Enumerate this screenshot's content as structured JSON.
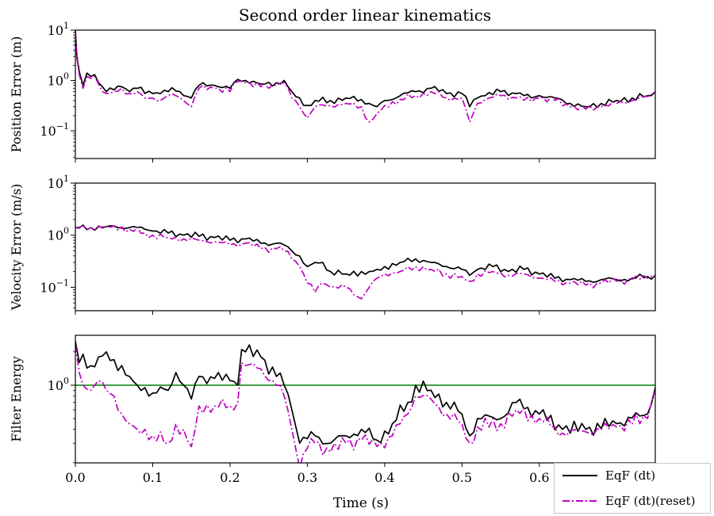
{
  "chart_data": {
    "title": "Second order linear kinematics",
    "xlabel": "Time (s)",
    "xlim": [
      0,
      0.75
    ],
    "x_ticks": [
      "0.0",
      "0.1",
      "0.2",
      "0.3",
      "0.4",
      "0.5",
      "0.6"
    ],
    "x_tick_values": [
      0,
      0.1,
      0.2,
      0.3,
      0.4,
      0.5,
      0.6
    ],
    "legend": {
      "placement": "bottom-right",
      "entries": [
        {
          "label": "EqF (dt)",
          "color": "#000000",
          "style": "solid"
        },
        {
          "label": "EqF (dt)(reset)",
          "color": "#c000c0",
          "style": "dashdot"
        }
      ]
    },
    "subplots": [
      {
        "type": "line",
        "ylabel": "Position Error (m)",
        "yscale": "log",
        "ylim_log10": [
          -1.55,
          1.0
        ],
        "y_ticks": [
          {
            "base": "10",
            "exp": "1",
            "value": 10
          },
          {
            "base": "10",
            "exp": "0",
            "value": 1
          },
          {
            "base": "10",
            "exp": "−1",
            "value": 0.1
          }
        ],
        "series": [
          {
            "name": "EqF (dt)",
            "color": "#000000",
            "dash": "",
            "x": [
              0,
              0.002,
              0.005,
              0.01,
              0.015,
              0.02,
              0.025,
              0.03,
              0.04,
              0.05,
              0.06,
              0.07,
              0.08,
              0.09,
              0.1,
              0.11,
              0.12,
              0.13,
              0.14,
              0.15,
              0.16,
              0.18,
              0.2,
              0.21,
              0.22,
              0.24,
              0.26,
              0.27,
              0.28,
              0.29,
              0.3,
              0.31,
              0.33,
              0.35,
              0.37,
              0.38,
              0.39,
              0.4,
              0.42,
              0.44,
              0.46,
              0.48,
              0.5,
              0.51,
              0.52,
              0.53,
              0.55,
              0.57,
              0.59,
              0.6,
              0.62,
              0.64,
              0.66,
              0.68,
              0.7,
              0.72,
              0.74,
              0.75
            ],
            "y": [
              10,
              3,
              1.5,
              0.8,
              1.4,
              1.2,
              1.3,
              0.9,
              0.6,
              0.65,
              0.75,
              0.6,
              0.7,
              0.55,
              0.55,
              0.55,
              0.6,
              0.62,
              0.5,
              0.45,
              0.8,
              0.8,
              0.7,
              1.05,
              1.0,
              0.85,
              0.9,
              1.0,
              0.6,
              0.45,
              0.32,
              0.4,
              0.4,
              0.45,
              0.42,
              0.35,
              0.3,
              0.4,
              0.5,
              0.6,
              0.7,
              0.55,
              0.55,
              0.3,
              0.45,
              0.5,
              0.6,
              0.55,
              0.45,
              0.5,
              0.45,
              0.35,
              0.3,
              0.35,
              0.4,
              0.45,
              0.5,
              0.6
            ]
          },
          {
            "name": "EqF (dt)(reset)",
            "color": "#c000c0",
            "dash": "9,3,2,3",
            "x": [
              0,
              0.002,
              0.005,
              0.01,
              0.015,
              0.02,
              0.025,
              0.03,
              0.04,
              0.05,
              0.06,
              0.07,
              0.08,
              0.09,
              0.1,
              0.11,
              0.12,
              0.13,
              0.14,
              0.15,
              0.16,
              0.18,
              0.2,
              0.21,
              0.22,
              0.24,
              0.26,
              0.27,
              0.28,
              0.29,
              0.3,
              0.31,
              0.33,
              0.35,
              0.37,
              0.38,
              0.39,
              0.4,
              0.42,
              0.44,
              0.46,
              0.48,
              0.5,
              0.51,
              0.52,
              0.53,
              0.55,
              0.57,
              0.59,
              0.6,
              0.62,
              0.64,
              0.66,
              0.68,
              0.7,
              0.72,
              0.74,
              0.75
            ],
            "y": [
              9,
              2.8,
              1.3,
              0.7,
              1.2,
              1.1,
              1.2,
              0.85,
              0.55,
              0.6,
              0.7,
              0.55,
              0.6,
              0.45,
              0.45,
              0.4,
              0.5,
              0.5,
              0.4,
              0.3,
              0.7,
              0.7,
              0.6,
              0.95,
              0.9,
              0.75,
              0.8,
              0.9,
              0.45,
              0.3,
              0.18,
              0.3,
              0.32,
              0.35,
              0.3,
              0.15,
              0.22,
              0.32,
              0.42,
              0.5,
              0.6,
              0.45,
              0.45,
              0.15,
              0.35,
              0.42,
              0.5,
              0.45,
              0.38,
              0.45,
              0.4,
              0.3,
              0.27,
              0.3,
              0.35,
              0.4,
              0.48,
              0.6
            ]
          }
        ]
      },
      {
        "type": "line",
        "ylabel": "Velocity Error (m/s)",
        "yscale": "log",
        "ylim_log10": [
          -1.45,
          1.0
        ],
        "y_ticks": [
          {
            "base": "10",
            "exp": "1",
            "value": 10
          },
          {
            "base": "10",
            "exp": "0",
            "value": 1
          },
          {
            "base": "10",
            "exp": "−1",
            "value": 0.1
          }
        ],
        "series": [
          {
            "name": "EqF (dt)",
            "color": "#000000",
            "dash": "",
            "x": [
              0,
              0.02,
              0.04,
              0.05,
              0.07,
              0.09,
              0.1,
              0.12,
              0.14,
              0.16,
              0.18,
              0.2,
              0.22,
              0.24,
              0.26,
              0.27,
              0.28,
              0.29,
              0.3,
              0.31,
              0.32,
              0.33,
              0.35,
              0.37,
              0.38,
              0.39,
              0.4,
              0.42,
              0.44,
              0.46,
              0.48,
              0.5,
              0.51,
              0.52,
              0.54,
              0.56,
              0.58,
              0.6,
              0.62,
              0.64,
              0.66,
              0.68,
              0.7,
              0.72,
              0.74,
              0.75
            ],
            "y": [
              1.4,
              1.4,
              1.45,
              1.5,
              1.4,
              1.3,
              1.2,
              1.1,
              1.0,
              0.95,
              0.9,
              0.8,
              0.85,
              0.7,
              0.7,
              0.65,
              0.5,
              0.4,
              0.25,
              0.3,
              0.3,
              0.2,
              0.18,
              0.2,
              0.2,
              0.22,
              0.25,
              0.3,
              0.35,
              0.3,
              0.25,
              0.22,
              0.17,
              0.22,
              0.25,
              0.2,
              0.22,
              0.18,
              0.15,
              0.14,
              0.13,
              0.14,
              0.14,
              0.15,
              0.16,
              0.17
            ]
          },
          {
            "name": "EqF (dt)(reset)",
            "color": "#c000c0",
            "dash": "9,3,2,3",
            "x": [
              0,
              0.02,
              0.04,
              0.05,
              0.07,
              0.09,
              0.1,
              0.12,
              0.14,
              0.16,
              0.18,
              0.2,
              0.22,
              0.24,
              0.26,
              0.27,
              0.28,
              0.29,
              0.3,
              0.31,
              0.32,
              0.33,
              0.35,
              0.37,
              0.38,
              0.39,
              0.4,
              0.42,
              0.44,
              0.46,
              0.48,
              0.5,
              0.51,
              0.52,
              0.54,
              0.56,
              0.58,
              0.6,
              0.62,
              0.64,
              0.66,
              0.68,
              0.7,
              0.72,
              0.74,
              0.75
            ],
            "y": [
              1.4,
              1.4,
              1.45,
              1.5,
              1.3,
              1.1,
              1.0,
              0.9,
              0.85,
              0.8,
              0.75,
              0.65,
              0.7,
              0.55,
              0.55,
              0.5,
              0.35,
              0.25,
              0.12,
              0.08,
              0.12,
              0.1,
              0.1,
              0.06,
              0.1,
              0.15,
              0.18,
              0.2,
              0.25,
              0.22,
              0.18,
              0.16,
              0.13,
              0.18,
              0.2,
              0.17,
              0.18,
              0.15,
              0.13,
              0.12,
              0.11,
              0.12,
              0.13,
              0.14,
              0.15,
              0.17
            ]
          }
        ]
      },
      {
        "type": "line",
        "ylabel": "Filter Energy",
        "yscale": "log",
        "ylim_log10": [
          -0.7,
          0.45
        ],
        "y_ticks": [
          {
            "base": "10",
            "exp": "0",
            "value": 1
          }
        ],
        "hline": {
          "value": 1,
          "color": "#008000"
        },
        "series": [
          {
            "name": "EqF (dt)",
            "color": "#000000",
            "dash": "",
            "x": [
              0,
              0.005,
              0.01,
              0.02,
              0.03,
              0.04,
              0.05,
              0.06,
              0.07,
              0.08,
              0.09,
              0.1,
              0.12,
              0.13,
              0.14,
              0.15,
              0.16,
              0.18,
              0.2,
              0.21,
              0.215,
              0.22,
              0.24,
              0.26,
              0.27,
              0.28,
              0.29,
              0.3,
              0.31,
              0.33,
              0.35,
              0.37,
              0.39,
              0.41,
              0.43,
              0.44,
              0.46,
              0.48,
              0.5,
              0.51,
              0.52,
              0.55,
              0.57,
              0.6,
              0.63,
              0.66,
              0.7,
              0.74,
              0.75
            ],
            "y": [
              2.5,
              1.6,
              1.9,
              1.5,
              1.8,
              2.0,
              1.7,
              1.5,
              1.2,
              1.0,
              0.95,
              0.85,
              0.9,
              1.3,
              1.0,
              0.75,
              1.2,
              1.15,
              1.1,
              1.0,
              2.1,
              2.0,
              1.8,
              1.2,
              1.0,
              0.6,
              0.3,
              0.33,
              0.35,
              0.3,
              0.35,
              0.4,
              0.32,
              0.45,
              0.7,
              1.0,
              0.9,
              0.7,
              0.55,
              0.35,
              0.5,
              0.5,
              0.7,
              0.55,
              0.4,
              0.4,
              0.45,
              0.55,
              0.95
            ]
          },
          {
            "name": "EqF (dt)(reset)",
            "color": "#c000c0",
            "dash": "9,3,2,3",
            "x": [
              0,
              0.005,
              0.01,
              0.02,
              0.03,
              0.04,
              0.05,
              0.06,
              0.07,
              0.08,
              0.09,
              0.1,
              0.12,
              0.13,
              0.14,
              0.15,
              0.16,
              0.18,
              0.2,
              0.21,
              0.215,
              0.22,
              0.24,
              0.26,
              0.27,
              0.28,
              0.29,
              0.3,
              0.31,
              0.33,
              0.35,
              0.37,
              0.39,
              0.41,
              0.43,
              0.44,
              0.46,
              0.48,
              0.5,
              0.51,
              0.52,
              0.55,
              0.57,
              0.6,
              0.63,
              0.66,
              0.7,
              0.74,
              0.75
            ],
            "y": [
              2.3,
              1.3,
              1.0,
              0.9,
              1.1,
              0.9,
              0.8,
              0.55,
              0.45,
              0.4,
              0.4,
              0.35,
              0.3,
              0.45,
              0.4,
              0.28,
              0.65,
              0.65,
              0.65,
              0.7,
              1.6,
              1.5,
              1.4,
              1.0,
              0.8,
              0.4,
              0.18,
              0.27,
              0.3,
              0.25,
              0.3,
              0.32,
              0.28,
              0.35,
              0.55,
              0.8,
              0.75,
              0.55,
              0.45,
              0.3,
              0.42,
              0.45,
              0.6,
              0.5,
              0.37,
              0.38,
              0.42,
              0.5,
              0.9
            ]
          }
        ]
      }
    ]
  }
}
